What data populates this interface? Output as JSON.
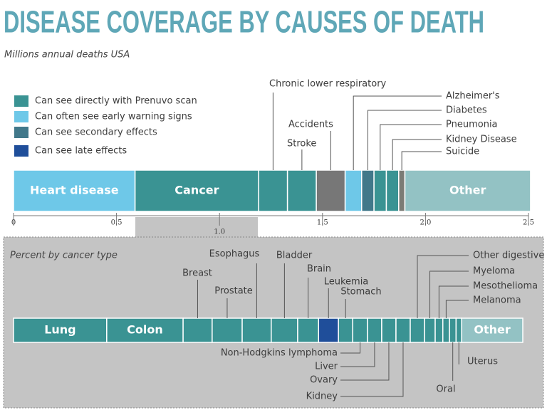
{
  "chart_data": [
    {
      "type": "stacked-bar",
      "title": "DISEASE COVERAGE BY CAUSES OF DEATH",
      "subtitle": "Millions annual deaths USA",
      "legend": [
        {
          "label": "Can see directly with Prenuvo scan",
          "color": "#3a9393"
        },
        {
          "label": "Can often see early warning signs",
          "color": "#6ec8e8"
        },
        {
          "label": "Can see secondary effects",
          "color": "#41788a"
        },
        {
          "label": "Can see late effects",
          "color": "#1f4e9a"
        }
      ],
      "categories": [
        "Heart disease",
        "Cancer",
        "Chronic lower respiratory",
        "Stroke",
        "Accidents",
        "Alzheimer's",
        "Diabetes",
        "Pneumonia",
        "Kidney Disease",
        "Suicide",
        "Other"
      ],
      "values": [
        0.59,
        0.6,
        0.14,
        0.14,
        0.14,
        0.08,
        0.06,
        0.06,
        0.06,
        0.03,
        0.61
      ],
      "colors": [
        "#6ec8e8",
        "#3a9393",
        "#3a9393",
        "#3a9393",
        "#777777",
        "#6ec8e8",
        "#41788a",
        "#3a9393",
        "#3a9393",
        "#7b7b75",
        "#93c2c4"
      ],
      "xlim": [
        0,
        2.5
      ],
      "xticks": [
        0,
        0.5,
        {
          "value": 1,
          "label": "1.0"
        },
        1.5,
        {
          "value": 2,
          "label": "2.0"
        },
        2.5
      ]
    },
    {
      "type": "stacked-bar",
      "title": "Percent by cancer type",
      "categories": [
        "Lung",
        "Colon",
        "Breast",
        "Prostate",
        "Esophagus",
        "Bladder",
        "Brain",
        "Leukemia",
        "Stomach",
        "Non-Hodgkins lymphoma",
        "Liver",
        "Ovary",
        "Kidney",
        "Other digestive",
        "Myeloma",
        "Mesothelioma",
        "Melanoma",
        "Oral",
        "Uterus",
        "Other"
      ],
      "values": [
        18.3,
        15,
        5.7,
        5.9,
        5.7,
        5.2,
        4.1,
        3.9,
        2.8,
        2.9,
        2.8,
        2.8,
        2.8,
        2.8,
        2.1,
        1.5,
        1.3,
        1.3,
        1.1,
        12
      ],
      "colors": [
        "#3a9393",
        "#3a9393",
        "#3a9393",
        "#3a9393",
        "#3a9393",
        "#3a9393",
        "#3a9393",
        "#1f4e9a",
        "#3a9393",
        "#3a9393",
        "#3a9393",
        "#3a9393",
        "#3a9393",
        "#3a9393",
        "#3a9393",
        "#3a9393",
        "#3a9393",
        "#3a9393",
        "#3a9393",
        "#93c2c4"
      ]
    }
  ]
}
